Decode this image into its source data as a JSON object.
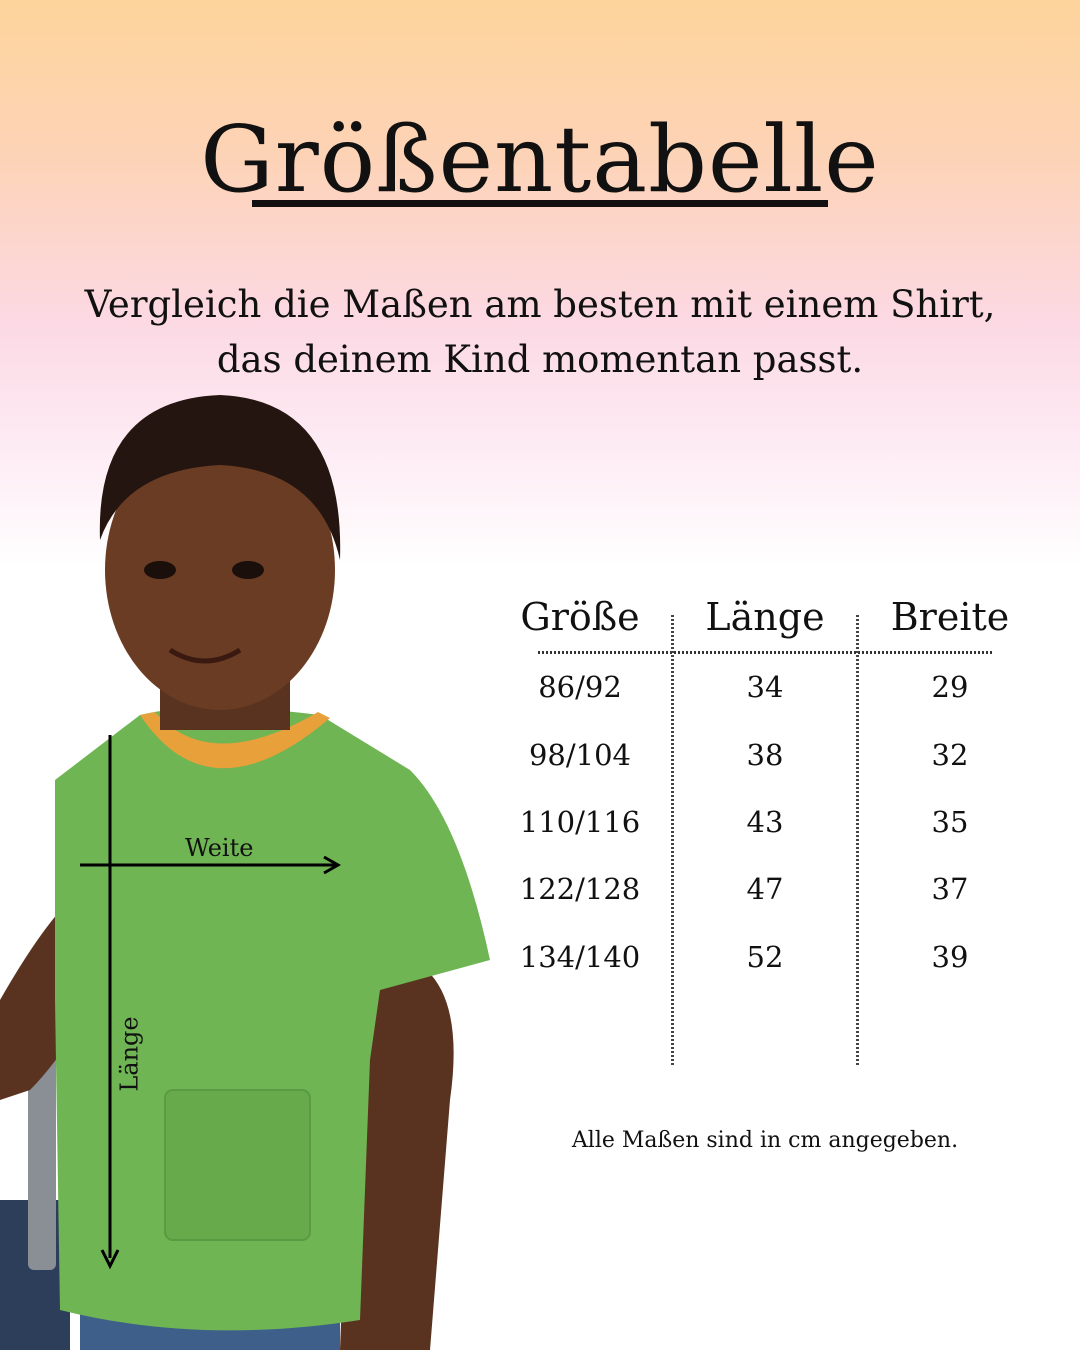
{
  "title": "Größentabelle",
  "subtitle": [
    "Vergleich die Maßen am besten mit einem Shirt,",
    "das deinem Kind momentan passt."
  ],
  "table": {
    "headers": [
      "Größe",
      "Länge",
      "Breite"
    ],
    "rows": [
      [
        "86/92",
        "34",
        "29"
      ],
      [
        "98/104",
        "38",
        "32"
      ],
      [
        "110/116",
        "43",
        "35"
      ],
      [
        "122/128",
        "47",
        "37"
      ],
      [
        "134/140",
        "52",
        "39"
      ]
    ]
  },
  "note": "Alle Maßen sind in cm angegeben.",
  "photo": {
    "measure_width_label": "Weite",
    "measure_length_label": "Länge",
    "shirt_color": "#6fb553",
    "collar_color": "#e8a03a"
  }
}
